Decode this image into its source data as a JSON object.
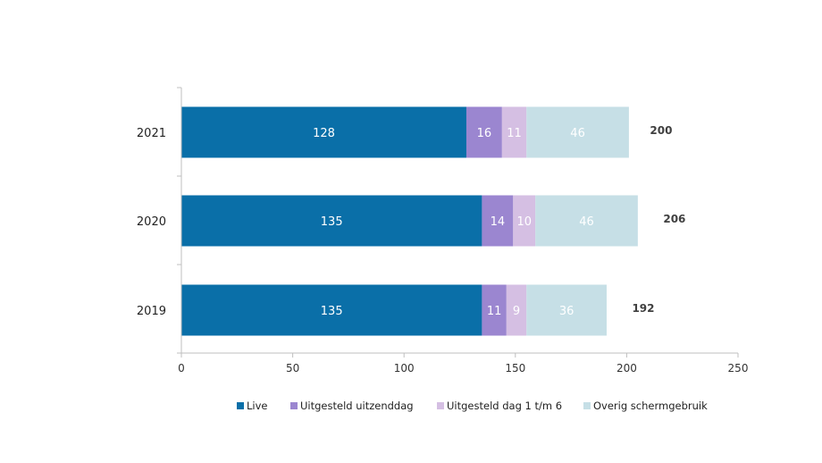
{
  "chart_data": {
    "type": "bar",
    "orientation": "horizontal",
    "stacked": true,
    "categories": [
      "2021",
      "2020",
      "2019"
    ],
    "series": [
      {
        "name": "Live",
        "values": [
          128,
          135,
          135
        ],
        "color": "#0a6fa8"
      },
      {
        "name": "Uitgesteld uitzenddag",
        "values": [
          16,
          14,
          11
        ],
        "color": "#9b86d0"
      },
      {
        "name": "Uitgesteld dag 1 t/m 6",
        "values": [
          11,
          10,
          9
        ],
        "color": "#d5bfe3"
      },
      {
        "name": "Overig schermgebruik",
        "values": [
          46,
          46,
          36
        ],
        "color": "#c6dfe6"
      }
    ],
    "segment_labels": [
      [
        "128",
        "16",
        "11",
        "46"
      ],
      [
        "135",
        "14",
        "10",
        "46"
      ],
      [
        "135",
        "11",
        "9",
        "36"
      ]
    ],
    "totals": [
      200,
      206,
      192
    ],
    "xlim": [
      0,
      250
    ],
    "xticks": [
      0,
      50,
      100,
      150,
      200,
      250
    ],
    "grid": false,
    "legend_position": "bottom"
  }
}
